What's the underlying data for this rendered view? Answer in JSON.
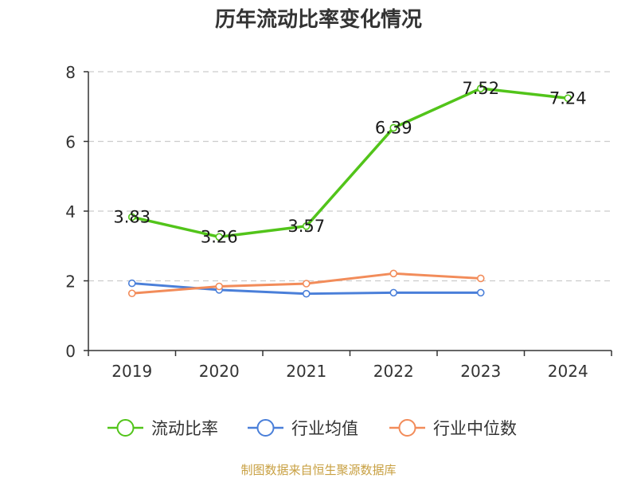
{
  "chart_data": {
    "type": "line",
    "title": "历年流动比率变化情况",
    "categories": [
      "2019",
      "2020",
      "2021",
      "2022",
      "2023",
      "2024"
    ],
    "ylim": [
      0,
      8
    ],
    "yticks": [
      0,
      2,
      4,
      6,
      8
    ],
    "grid": true,
    "legend_position": "bottom",
    "series": [
      {
        "name": "流动比率",
        "color": "#52c41a",
        "values": [
          3.83,
          3.26,
          3.57,
          6.39,
          7.52,
          7.24
        ],
        "labels": [
          "3.83",
          "3.26",
          "3.57",
          "6.39",
          "7.52",
          "7.24"
        ]
      },
      {
        "name": "行业均值",
        "color": "#4a7fd9",
        "values": [
          1.93,
          1.74,
          1.63,
          1.66,
          1.66,
          null
        ]
      },
      {
        "name": "行业中位数",
        "color": "#f28c5a",
        "values": [
          1.64,
          1.84,
          1.92,
          2.21,
          2.07,
          null
        ]
      }
    ]
  },
  "footer": "制图数据来自恒生聚源数据库"
}
